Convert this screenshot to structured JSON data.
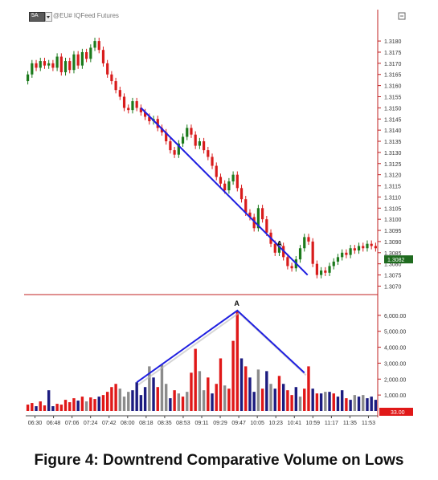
{
  "header": {
    "interval": "5A",
    "symbol": "@EU#  IQFeed  Futures"
  },
  "caption": "Figure 4:  Downtrend Comparative Volume on Lows",
  "chart_data": [
    {
      "type": "candlestick",
      "panel": "price",
      "current_price": "1.3082",
      "ylim": [
        1.3068,
        1.3184
      ],
      "y_ticks": [
        "1.3180",
        "1.3175",
        "1.3170",
        "1.3165",
        "1.3160",
        "1.3155",
        "1.3150",
        "1.3145",
        "1.3140",
        "1.3135",
        "1.3130",
        "1.3125",
        "1.3120",
        "1.3115",
        "1.3110",
        "1.3105",
        "1.3100",
        "1.3095",
        "1.3090",
        "1.3085",
        "1.3080",
        "1.3075",
        "1.3070"
      ],
      "close": [
        1.3165,
        1.317,
        1.3168,
        1.3171,
        1.3169,
        1.317,
        1.3168,
        1.3173,
        1.3166,
        1.3171,
        1.3167,
        1.3174,
        1.3169,
        1.3175,
        1.3172,
        1.3177,
        1.318,
        1.3176,
        1.317,
        1.3165,
        1.3162,
        1.3158,
        1.3155,
        1.315,
        1.3149,
        1.3153,
        1.315,
        1.3148,
        1.3146,
        1.3144,
        1.3145,
        1.3141,
        1.3139,
        1.3135,
        1.3131,
        1.3129,
        1.3134,
        1.3137,
        1.3141,
        1.3138,
        1.3133,
        1.3135,
        1.3131,
        1.3128,
        1.3124,
        1.3119,
        1.3116,
        1.3113,
        1.3117,
        1.312,
        1.3114,
        1.3109,
        1.3103,
        1.3101,
        1.3096,
        1.3105,
        1.31,
        1.3094,
        1.3089,
        1.3085,
        1.3088,
        1.3083,
        1.3079,
        1.3078,
        1.3082,
        1.3087,
        1.3092,
        1.309,
        1.308,
        1.3075,
        1.3077,
        1.3076,
        1.3079,
        1.3081,
        1.3083,
        1.3085,
        1.3084,
        1.3087,
        1.3086,
        1.3088,
        1.3087,
        1.3089,
        1.3088,
        1.3087
      ],
      "x_ticks": [
        "06:30",
        "06:48",
        "07:06",
        "07:24",
        "07:42",
        "08:00",
        "08:18",
        "08:35",
        "08:53",
        "09:11",
        "09:29",
        "09:47",
        "10:05",
        "10:23",
        "10:41",
        "10:59",
        "11:17",
        "11:35",
        "11:53"
      ],
      "trendline_color": "#1f1fe0",
      "annotation": "A"
    },
    {
      "type": "bar",
      "panel": "volume",
      "current_value": "33.00",
      "ylim": [
        0,
        7000
      ],
      "y_ticks": [
        "6,000.00",
        "5,000.00",
        "4,000.00",
        "3,000.00",
        "2,000.00",
        "1,000.00"
      ],
      "values": [
        400,
        500,
        300,
        600,
        350,
        1300,
        300,
        450,
        400,
        700,
        550,
        800,
        650,
        900,
        600,
        850,
        750,
        900,
        1000,
        1200,
        1500,
        1700,
        1400,
        900,
        1200,
        1300,
        1800,
        1000,
        1500,
        2800,
        2100,
        1500,
        2900,
        1700,
        800,
        1300,
        1100,
        900,
        1200,
        2400,
        3900,
        2500,
        1300,
        2100,
        1100,
        1700,
        3300,
        1600,
        1400,
        4400,
        6300,
        3300,
        2800,
        2100,
        1200,
        2600,
        1400,
        2500,
        1700,
        1400,
        2200,
        1700,
        1300,
        1000,
        1500,
        900,
        1400,
        2800,
        1400,
        1100,
        1100,
        1200,
        1200,
        1100,
        900,
        1300,
        800,
        700,
        1000,
        900,
        1000,
        800,
        900,
        700
      ],
      "colors": [
        "r",
        "r",
        "n",
        "r",
        "r",
        "n",
        "n",
        "r",
        "r",
        "r",
        "r",
        "r",
        "n",
        "r",
        "g",
        "r",
        "r",
        "n",
        "r",
        "r",
        "r",
        "r",
        "g",
        "g",
        "g",
        "n",
        "n",
        "n",
        "n",
        "g",
        "n",
        "r",
        "g",
        "g",
        "n",
        "r",
        "g",
        "r",
        "g",
        "r",
        "r",
        "g",
        "g",
        "r",
        "n",
        "r",
        "r",
        "g",
        "r",
        "r",
        "r",
        "n",
        "r",
        "n",
        "n",
        "g",
        "r",
        "n",
        "g",
        "n",
        "r",
        "n",
        "r",
        "r",
        "n",
        "g",
        "r",
        "r",
        "n",
        "r",
        "n",
        "g",
        "n",
        "r",
        "n",
        "n",
        "r",
        "n",
        "g",
        "n",
        "g",
        "n",
        "n",
        "n"
      ],
      "palette": {
        "r": "#e01818",
        "n": "#1c1c80",
        "g": "#8c8c8c"
      },
      "trendline_color": "#1f1fe0",
      "annotation": "A"
    }
  ]
}
